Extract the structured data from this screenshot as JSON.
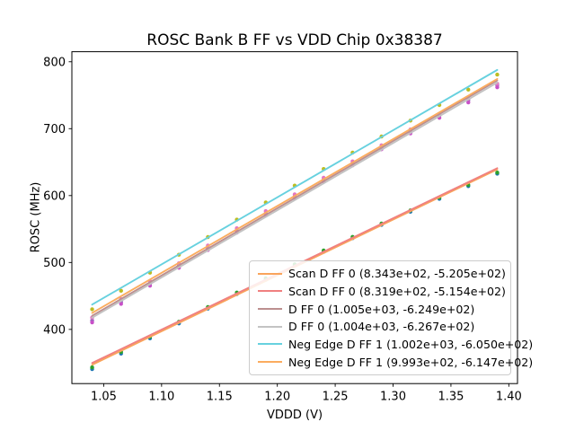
{
  "chart_data": {
    "type": "scatter",
    "title": "ROSC Bank B FF vs VDD Chip 0x38387",
    "xlabel": "VDDD (V)",
    "ylabel": "ROSC (MHz)",
    "xlim": [
      1.0225,
      1.4075
    ],
    "ylim": [
      319,
      815
    ],
    "grid": false,
    "legend_position": "lower right",
    "xticks": [
      1.05,
      1.1,
      1.15,
      1.2,
      1.25,
      1.3,
      1.35,
      1.4
    ],
    "xtick_labels": [
      "1.05",
      "1.10",
      "1.15",
      "1.20",
      "1.25",
      "1.30",
      "1.35",
      "1.40"
    ],
    "yticks": [
      400,
      500,
      600,
      700,
      800
    ],
    "ytick_labels": [
      "400",
      "500",
      "600",
      "700",
      "800"
    ],
    "x": [
      1.04,
      1.065,
      1.09,
      1.115,
      1.14,
      1.165,
      1.19,
      1.215,
      1.24,
      1.265,
      1.29,
      1.315,
      1.34,
      1.365,
      1.39
    ],
    "fit_x_range": [
      1.04,
      1.39
    ],
    "series": [
      {
        "name": "scan-d-ff-0-a",
        "legend_label": "Scan D FF 0 (8.343e+02, -5.205e+02)",
        "fit_slope": 834.3,
        "fit_intercept": -520.5,
        "line_color": "#F9A45B",
        "point_color": "#1f77b4",
        "points": [
          340.7,
          363.8,
          386.6,
          409.0,
          431.0,
          452.8,
          474.2,
          495.2,
          515.9,
          536.2,
          556.2,
          575.8,
          595.1,
          614.1,
          632.7
        ]
      },
      {
        "name": "scan-d-ff-0-b",
        "legend_label": "Scan D FF 0 (8.319e+02, -5.154e+02)",
        "fit_slope": 831.9,
        "fit_intercept": -515.4,
        "line_color": "#F08080",
        "point_color": "#2ca02c",
        "points": [
          343.3,
          366.3,
          389.0,
          411.4,
          433.4,
          455.1,
          476.4,
          497.4,
          518.0,
          538.3,
          558.2,
          577.8,
          597.0,
          615.9,
          634.4
        ]
      },
      {
        "name": "d-ff-0-a",
        "legend_label": "D FF 0 (1.005e+03, -6.249e+02)",
        "fit_slope": 1005.0,
        "fit_intercept": -624.9,
        "line_color": "#BC8F8F",
        "point_color": "#9467bd",
        "points": [
          413.3,
          440.9,
          468.2,
          495.1,
          521.6,
          547.6,
          573.4,
          598.7,
          623.6,
          648.2,
          672.3,
          696.1,
          719.5,
          742.5,
          765.1
        ]
      },
      {
        "name": "d-ff-0-b",
        "legend_label": "D FF 0 (1.004e+03, -6.267e+02)",
        "fit_slope": 1004.0,
        "fit_intercept": -626.7,
        "line_color": "#C3C3C3",
        "point_color": "#C850C8",
        "points": [
          410.5,
          438.1,
          465.3,
          492.2,
          518.6,
          544.7,
          570.4,
          595.7,
          620.6,
          645.1,
          669.2,
          693.0,
          716.3,
          739.3,
          761.9
        ]
      },
      {
        "name": "neg-edge-d-ff-1-a",
        "legend_label": "Neg Edge D FF 1 (1.002e+03, -6.050e+02)",
        "fit_slope": 1002.0,
        "fit_intercept": -605.0,
        "line_color": "#67D1DF",
        "point_color": "#BCBD22",
        "points": [
          430.1,
          457.7,
          484.8,
          511.6,
          538.0,
          564.1,
          589.7,
          614.9,
          639.8,
          664.3,
          688.3,
          712.0,
          735.3,
          758.3,
          780.8
        ]
      },
      {
        "name": "neg-edge-d-ff-1-b",
        "legend_label": "Neg Edge D FF 1 (9.993e+02, -6.147e+02)",
        "fit_slope": 999.3,
        "fit_intercept": -614.7,
        "line_color": "#FBAC5F",
        "point_color": "#E377C2",
        "points": [
          417.6,
          445.1,
          472.2,
          498.9,
          525.3,
          551.2,
          576.8,
          601.9,
          626.7,
          651.2,
          675.1,
          698.8,
          721.9,
          744.9,
          767.3
        ]
      }
    ]
  }
}
